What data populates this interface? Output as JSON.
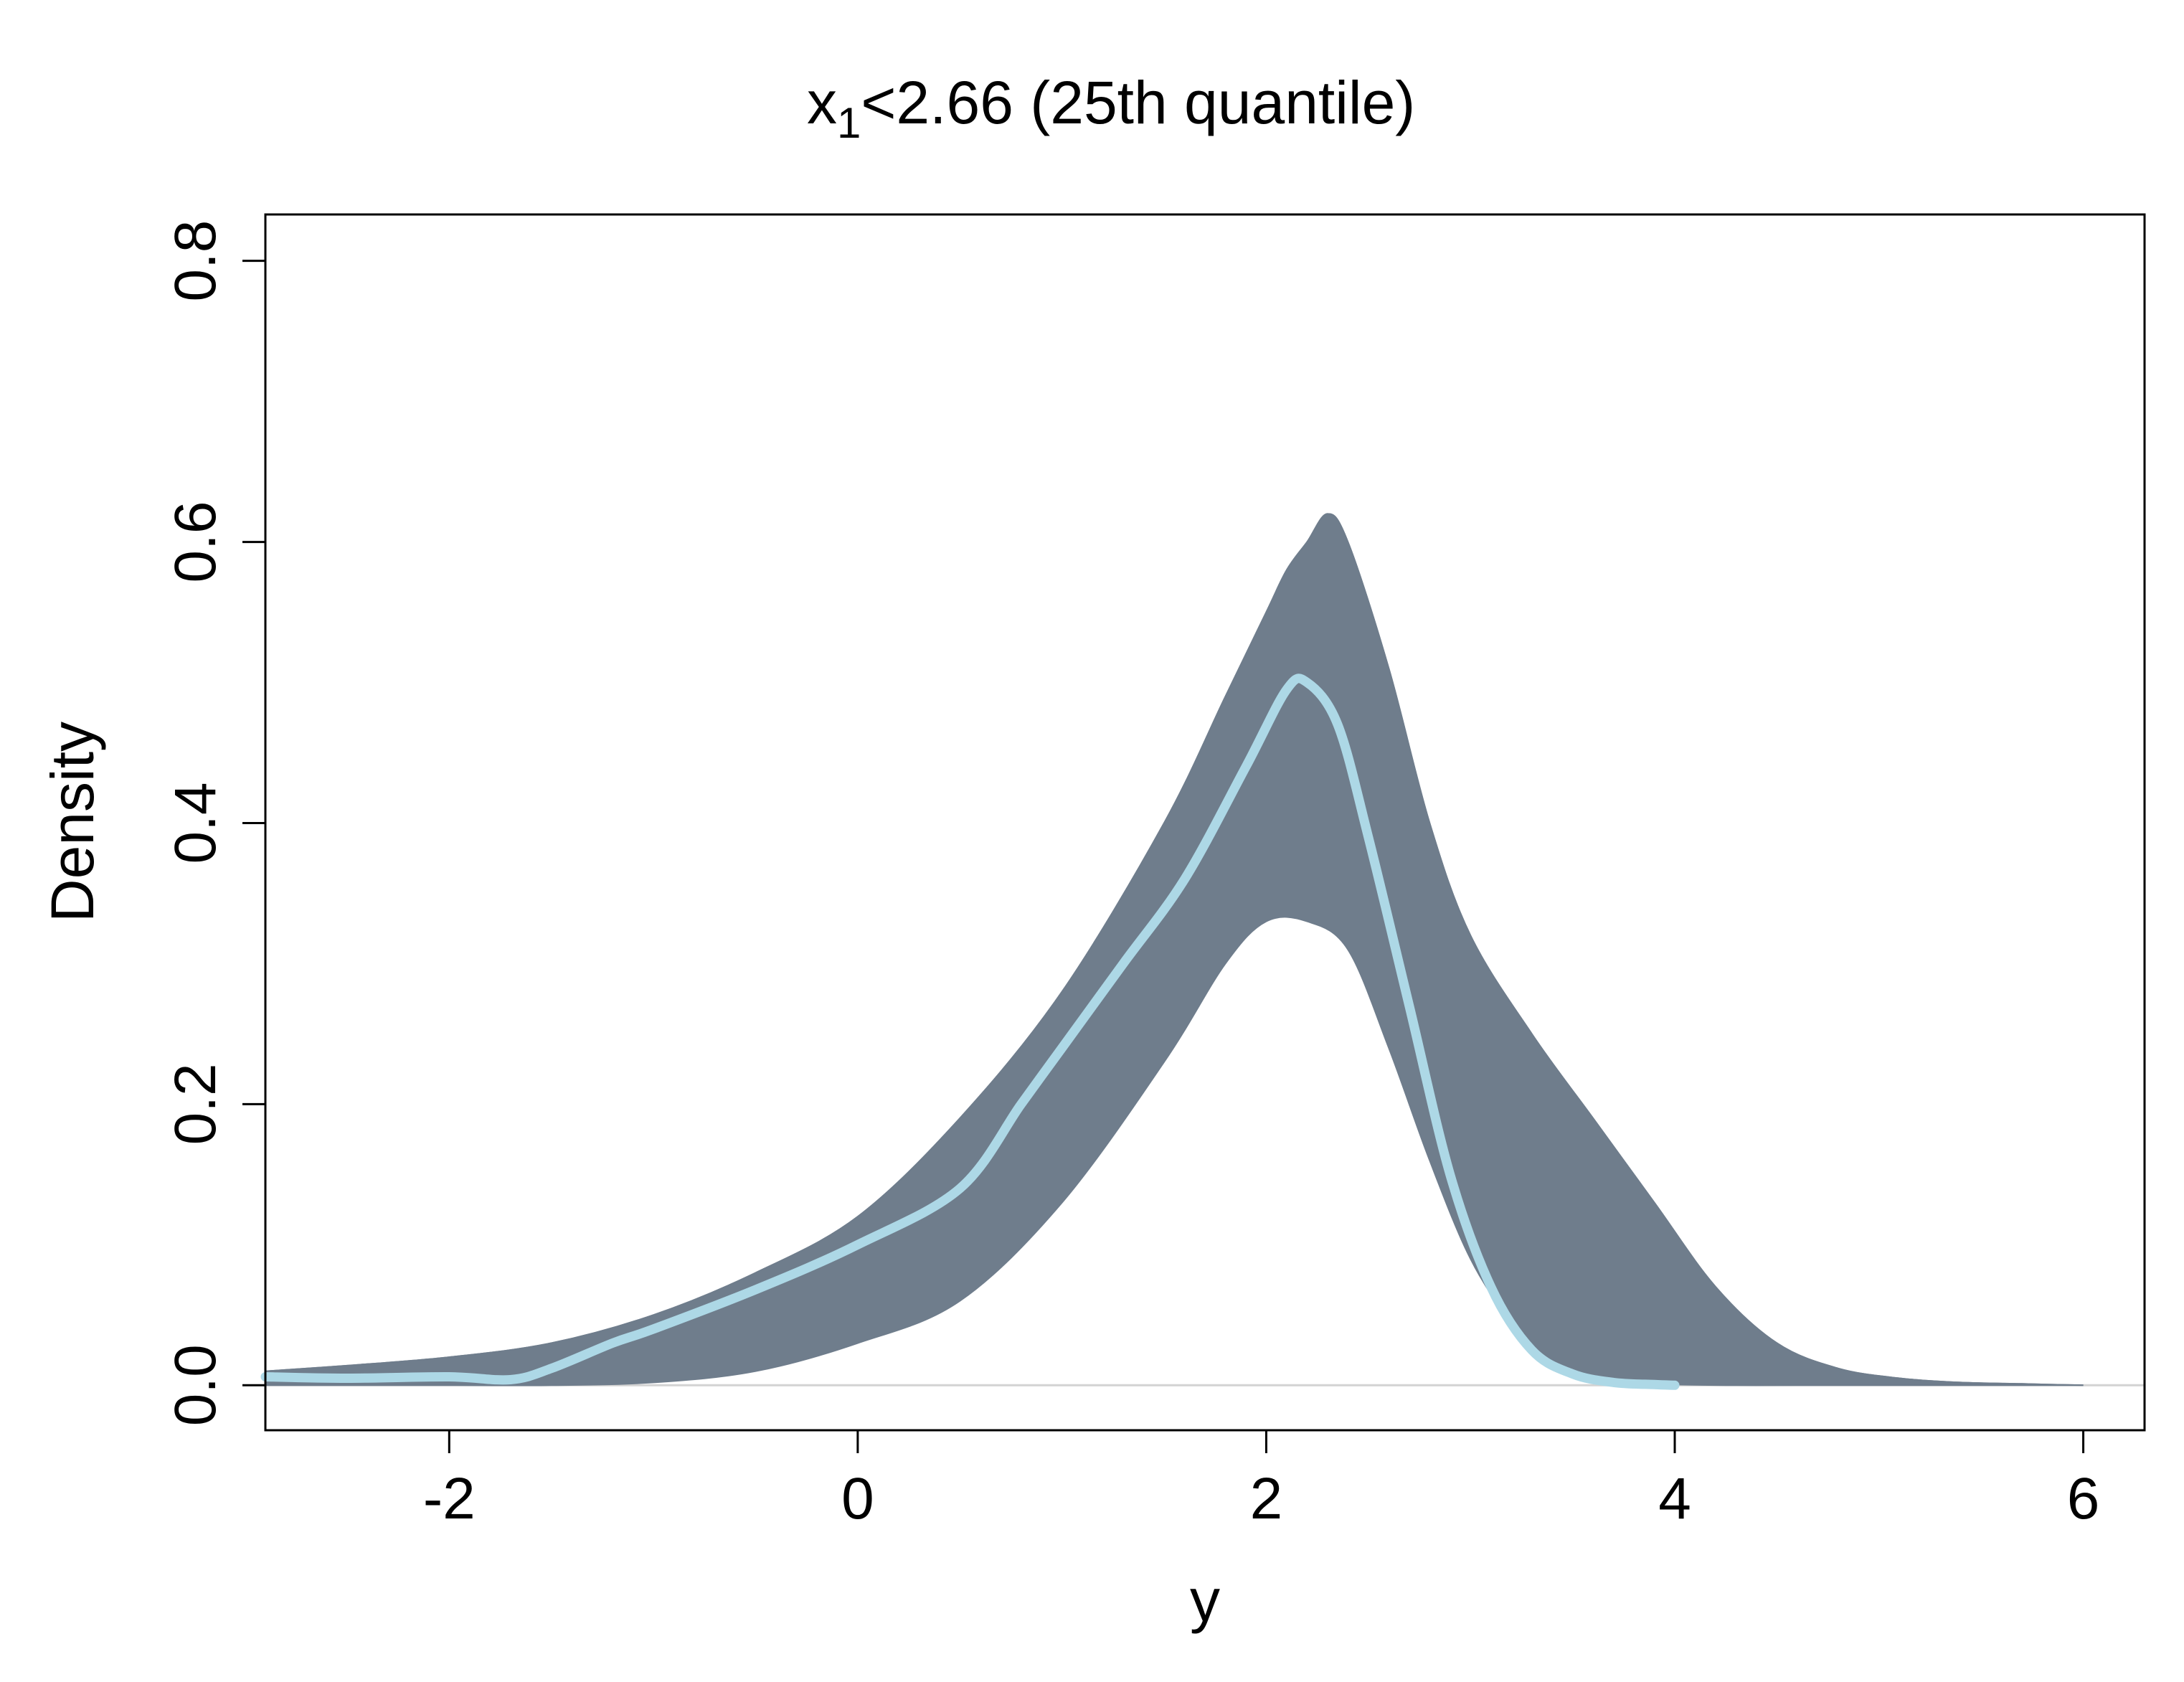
{
  "chart_data": {
    "type": "line",
    "title_main": "x",
    "title_sub": "1",
    "title_rest": "<2.66 (25th quantile)",
    "xlabel": "y",
    "ylabel": "Density",
    "xlim": [
      -2.9,
      6.3
    ],
    "ylim": [
      -0.032,
      0.833
    ],
    "x_ticks": [
      -2,
      0,
      2,
      4,
      6
    ],
    "x_tick_labels": [
      "-2",
      "0",
      "2",
      "4",
      "6"
    ],
    "y_ticks": [
      0.0,
      0.2,
      0.4,
      0.6,
      0.8
    ],
    "y_tick_labels": [
      "0.0",
      "0.2",
      "0.4",
      "0.6",
      "0.8"
    ],
    "zero_line": true,
    "colors": {
      "band": "#6f7d8c",
      "highlight": "#add8e6",
      "zero_line": "#d3d3d3"
    },
    "series": [
      {
        "role": "band-upper",
        "x": [
          -2.9,
          -2.5,
          -2.0,
          -1.5,
          -1.0,
          -0.5,
          0.0,
          0.5,
          1.0,
          1.5,
          1.8,
          2.0,
          2.1,
          2.2,
          2.3,
          2.4,
          2.6,
          2.8,
          3.0,
          3.3,
          3.6,
          3.9,
          4.2,
          4.5,
          4.8,
          5.1,
          5.4,
          5.7,
          6.0
        ],
        "y": [
          0.01,
          0.014,
          0.02,
          0.03,
          0.05,
          0.08,
          0.12,
          0.19,
          0.28,
          0.4,
          0.49,
          0.55,
          0.58,
          0.6,
          0.62,
          0.6,
          0.51,
          0.4,
          0.32,
          0.25,
          0.19,
          0.13,
          0.07,
          0.03,
          0.012,
          0.005,
          0.002,
          0.001,
          0.0
        ]
      },
      {
        "role": "band-lower",
        "x": [
          -2.9,
          -2.0,
          -1.5,
          -1.0,
          -0.5,
          0.0,
          0.5,
          1.0,
          1.5,
          1.8,
          2.0,
          2.2,
          2.4,
          2.6,
          2.8,
          3.0,
          3.2,
          3.4,
          3.6,
          3.8,
          4.0,
          4.3,
          4.6,
          5.0,
          5.5,
          6.0
        ],
        "y": [
          0.0,
          0.0,
          0.0,
          0.002,
          0.01,
          0.03,
          0.06,
          0.13,
          0.23,
          0.3,
          0.33,
          0.33,
          0.31,
          0.24,
          0.16,
          0.09,
          0.045,
          0.018,
          0.006,
          0.002,
          0.0005,
          0.0,
          0.0,
          0.0,
          0.0,
          0.0
        ]
      },
      {
        "role": "highlight",
        "x": [
          -2.9,
          -2.5,
          -2.0,
          -1.7,
          -1.5,
          -1.2,
          -1.0,
          -0.5,
          0.0,
          0.5,
          0.8,
          1.0,
          1.3,
          1.6,
          1.9,
          2.1,
          2.2,
          2.35,
          2.5,
          2.7,
          2.9,
          3.1,
          3.3,
          3.5,
          3.7,
          3.9,
          4.0
        ],
        "y": [
          0.006,
          0.005,
          0.006,
          0.004,
          0.012,
          0.03,
          0.04,
          0.068,
          0.1,
          0.14,
          0.2,
          0.24,
          0.3,
          0.36,
          0.44,
          0.495,
          0.5,
          0.47,
          0.39,
          0.27,
          0.15,
          0.07,
          0.025,
          0.008,
          0.002,
          0.0005,
          0.0
        ]
      }
    ]
  }
}
